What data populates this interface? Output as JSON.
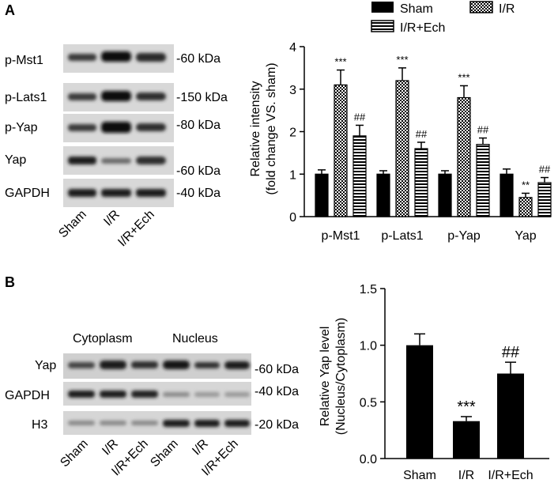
{
  "panels": {
    "a": {
      "letter": "A",
      "blot_rows": [
        {
          "label": "p-Mst1",
          "marker": "-60 kDa"
        },
        {
          "label": "p-Lats1",
          "marker": "-150 kDa"
        },
        {
          "label": "p-Yap",
          "marker": "-80 kDa"
        },
        {
          "label": "Yap",
          "marker": "-60 kDa"
        },
        {
          "label": "GAPDH",
          "marker": "-40 kDa"
        }
      ],
      "lanes": [
        "Sham",
        "I/R",
        "I/R+Ech"
      ]
    },
    "b": {
      "letter": "B",
      "groups": [
        "Cytoplasm",
        "Nucleus"
      ],
      "blot_rows": [
        {
          "label": "Yap",
          "marker": "-60 kDa"
        },
        {
          "label": "GAPDH",
          "marker": "-40 kDa"
        },
        {
          "label": "H3",
          "marker": "-20 kDa"
        }
      ],
      "lanes": [
        "Sham",
        "I/R",
        "I/R+Ech",
        "Sham",
        "I/R",
        "I/R+Ech"
      ]
    }
  },
  "colors": {
    "sham": "#000000",
    "bar_outline": "#000000"
  },
  "chart_data": [
    {
      "type": "bar",
      "categories": [
        "p-Mst1",
        "p-Lats1",
        "p-Yap",
        "Yap"
      ],
      "series": [
        {
          "name": "Sham",
          "values": [
            1.0,
            1.0,
            1.0,
            1.0
          ],
          "errors": [
            0.1,
            0.08,
            0.08,
            0.12
          ],
          "fill": "solid"
        },
        {
          "name": "I/R",
          "values": [
            3.1,
            3.2,
            2.8,
            0.45
          ],
          "errors": [
            0.35,
            0.3,
            0.28,
            0.1
          ],
          "fill": "checker"
        },
        {
          "name": "I/R+Ech",
          "values": [
            1.9,
            1.6,
            1.7,
            0.8
          ],
          "errors": [
            0.25,
            0.15,
            0.15,
            0.12
          ],
          "fill": "hstripe"
        }
      ],
      "annotations": [
        {
          "series": 1,
          "index": 0,
          "text": "***"
        },
        {
          "series": 2,
          "index": 0,
          "text": "##"
        },
        {
          "series": 1,
          "index": 1,
          "text": "***"
        },
        {
          "series": 2,
          "index": 1,
          "text": "##"
        },
        {
          "series": 1,
          "index": 2,
          "text": "***"
        },
        {
          "series": 2,
          "index": 2,
          "text": "##"
        },
        {
          "series": 1,
          "index": 3,
          "text": "**"
        },
        {
          "series": 2,
          "index": 3,
          "text": "##"
        }
      ],
      "ylabel_line1": "Relative intensity",
      "ylabel_line2": "(fold change VS. sham)",
      "ylim": [
        0,
        4
      ],
      "yticks": [
        0,
        1,
        2,
        3,
        4
      ],
      "legend": "top"
    },
    {
      "type": "bar",
      "categories": [
        "Sham",
        "I/R",
        "I/R+Ech"
      ],
      "values": [
        1.0,
        0.33,
        0.75
      ],
      "errors": [
        0.1,
        0.04,
        0.1
      ],
      "annotations": [
        {
          "index": 1,
          "text": "***"
        },
        {
          "index": 2,
          "text": "##"
        }
      ],
      "ylabel_line1": "Relative Yap level",
      "ylabel_line2": "(Nucleus/Cytoplasm)",
      "ylim": [
        0,
        1.5
      ],
      "yticks": [
        "0.0",
        "0.5",
        "1.0",
        "1.5"
      ]
    }
  ]
}
